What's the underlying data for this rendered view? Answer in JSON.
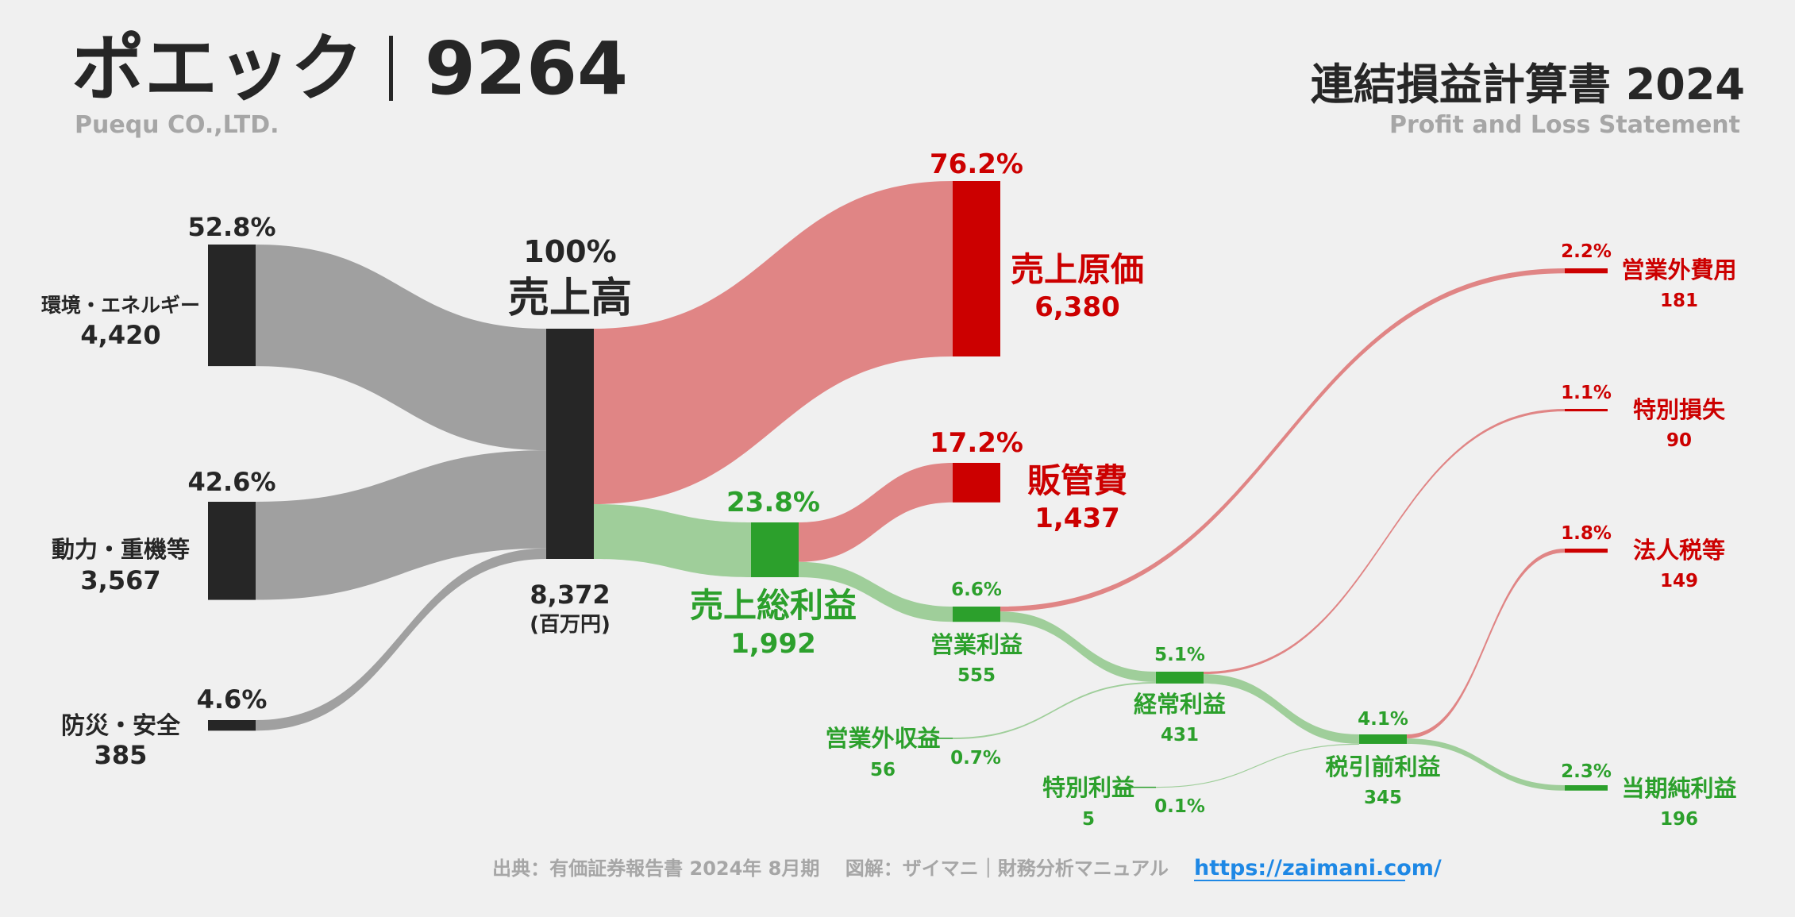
{
  "header": {
    "company_name": "ポエック",
    "ticker": "9264",
    "company_en": "Puequ CO.,LTD.",
    "report_title": "連結損益計算書 2024",
    "report_subtitle": "Profit and Loss Statement"
  },
  "footer": {
    "source": "出典：有価証券報告書 2024年 8月期　 図解：ザイマニ｜財務分析マニュアル",
    "link": "https://zaimani.com/"
  },
  "colors": {
    "segment": "#262626",
    "segment_flow": "#a0a0a0",
    "cost": "#cc0000",
    "cost_flow": "#e08585",
    "profit": "#2ca02c",
    "profit_flow": "#9fce9a",
    "text_dark": "#262626",
    "text_grey": "#a6a6a6",
    "link": "#1e88e5"
  },
  "chart_data": {
    "type": "sankey",
    "unit": "(百万円)",
    "nodes": {
      "seg1": {
        "label": "環境・エネルギー",
        "value": "4,420",
        "pct": "52.8%"
      },
      "seg2": {
        "label": "動力・重機等",
        "value": "3,567",
        "pct": "42.6%"
      },
      "seg3": {
        "label": "防災・安全",
        "value": "385",
        "pct": "4.6%"
      },
      "revenue": {
        "label": "売上高",
        "value": "8,372",
        "pct": "100%"
      },
      "cogs": {
        "label": "売上原価",
        "value": "6,380",
        "pct": "76.2%"
      },
      "gross": {
        "label": "売上総利益",
        "value": "1,992",
        "pct": "23.8%"
      },
      "sga": {
        "label": "販管費",
        "value": "1,437",
        "pct": "17.2%"
      },
      "op": {
        "label": "営業利益",
        "value": "555",
        "pct": "6.6%"
      },
      "nonop_inc": {
        "label": "営業外収益",
        "value": "56",
        "pct": "0.7%"
      },
      "nonop_exp": {
        "label": "営業外費用",
        "value": "181",
        "pct": "2.2%"
      },
      "ordinary": {
        "label": "経常利益",
        "value": "431",
        "pct": "5.1%"
      },
      "sp_gain": {
        "label": "特別利益",
        "value": "5",
        "pct": "0.1%"
      },
      "sp_loss": {
        "label": "特別損失",
        "value": "90",
        "pct": "1.1%"
      },
      "pretax": {
        "label": "税引前利益",
        "value": "345",
        "pct": "4.1%"
      },
      "tax": {
        "label": "法人税等",
        "value": "149",
        "pct": "1.8%"
      },
      "net": {
        "label": "当期純利益",
        "value": "196",
        "pct": "2.3%"
      }
    },
    "values": {
      "seg1": 4420,
      "seg2": 3567,
      "seg3": 385,
      "revenue": 8372,
      "cogs": 6380,
      "gross": 1992,
      "sga": 1437,
      "op": 555,
      "nonop_inc": 56,
      "nonop_exp": 181,
      "ordinary": 431,
      "sp_gain": 5,
      "sp_loss": 90,
      "pretax": 345,
      "tax": 149,
      "net": 196
    }
  }
}
